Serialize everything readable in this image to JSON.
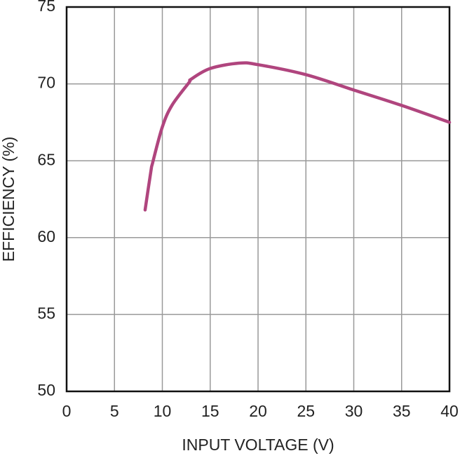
{
  "chart_data": {
    "type": "line",
    "x_label": "INPUT VOLTAGE (V)",
    "y_label": "EFFICIENCY (%)",
    "x": [
      8.2,
      8.8,
      9,
      10,
      11,
      12.8,
      13,
      15,
      18,
      20,
      25,
      30,
      35,
      40
    ],
    "series": [
      {
        "color": "#b0457e",
        "values": [
          61.8,
          64.3,
          64.9,
          67.2,
          68.6,
          70.1,
          70.3,
          71.0,
          71.35,
          71.25,
          70.6,
          69.6,
          68.6,
          67.5
        ]
      }
    ],
    "xlim": [
      0,
      40
    ],
    "xticks": [
      0,
      5,
      10,
      15,
      20,
      25,
      30,
      35,
      40
    ],
    "ylim": [
      50,
      75
    ],
    "yticks": [
      50,
      55,
      60,
      65,
      70,
      75
    ],
    "grid": true
  }
}
